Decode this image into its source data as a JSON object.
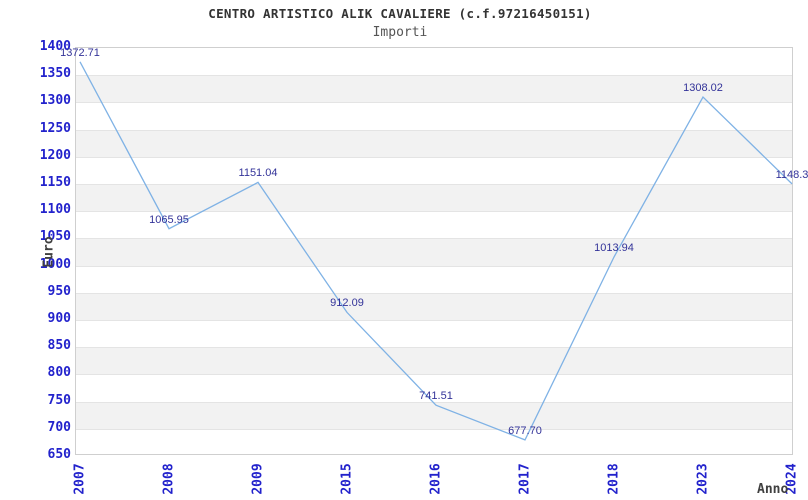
{
  "chart_data": {
    "type": "line",
    "title": "CENTRO ARTISTICO ALIK CAVALIERE (c.f.97216450151)",
    "subtitle": "Importi",
    "xlabel": "Anno",
    "ylabel": "Euro",
    "x": [
      "2007",
      "2008",
      "2009",
      "2015",
      "2016",
      "2017",
      "2018",
      "2023",
      "2024"
    ],
    "values": [
      1372.71,
      1065.95,
      1151.04,
      912.09,
      741.51,
      677.7,
      1013.94,
      1308.02,
      1148.3
    ],
    "point_labels": [
      "1372.71",
      "1065.95",
      "1151.04",
      "912.09",
      "741.51",
      "677.70",
      "1013.94",
      "1308.02",
      "1148.3"
    ],
    "ylim": [
      650,
      1400
    ],
    "ytick_step": 50,
    "yticks": [
      650,
      700,
      750,
      800,
      850,
      900,
      950,
      1000,
      1050,
      1100,
      1150,
      1200,
      1250,
      1300,
      1350,
      1400
    ],
    "grid": "horizontal gridlines every 50, alternating white/gray horizontal bands",
    "legend_position": "none"
  },
  "colors": {
    "line": "#7fb2e5",
    "tick_label": "#2222cc",
    "point_label": "#333399",
    "band_gray": "#f2f2f2",
    "gridline": "#e4e4e4",
    "plot_border": "#cfcfcf",
    "title": "#333333",
    "subtitle": "#555555",
    "axis_title": "#404040"
  }
}
